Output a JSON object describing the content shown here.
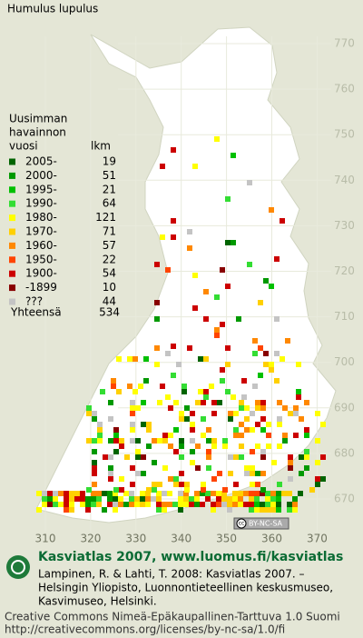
{
  "title": "Humulus lupulus",
  "legend": {
    "heading": [
      "Uusimman",
      "havainnon"
    ],
    "col_headers": [
      "vuosi",
      "lkm"
    ],
    "rows": [
      {
        "label": "2005-",
        "count": 19,
        "color": "#006400"
      },
      {
        "label": "2000-",
        "count": 51,
        "color": "#009900"
      },
      {
        "label": "1995-",
        "count": 21,
        "color": "#00c000"
      },
      {
        "label": "1990-",
        "count": 64,
        "color": "#33dd33"
      },
      {
        "label": "1980-",
        "count": 121,
        "color": "#ffff00"
      },
      {
        "label": "1970-",
        "count": 71,
        "color": "#ffd000"
      },
      {
        "label": "1960-",
        "count": 57,
        "color": "#ff8800"
      },
      {
        "label": "1950-",
        "count": 22,
        "color": "#ff4400"
      },
      {
        "label": "1900-",
        "count": 54,
        "color": "#cc0000"
      },
      {
        "label": "-1899",
        "count": 10,
        "color": "#880000"
      },
      {
        "label": "???",
        "count": 44,
        "color": "#c4c4c4"
      }
    ],
    "total_label": "Yhteensä",
    "total": 534
  },
  "map": {
    "northing_labels": [
      770,
      760,
      750,
      740,
      730,
      720,
      710,
      700,
      690,
      680,
      670
    ],
    "easting_labels": [
      310,
      320,
      330,
      340,
      350,
      360,
      370
    ],
    "license_badge": {
      "cc": "cc",
      "text": "BY-NC-SA"
    }
  },
  "footer": {
    "brand": "Kasviatlas 2007, www.luomus.fi/kasviatlas",
    "citation": [
      "Lampinen, R. & Lahti, T. 2008: Kasviatlas 2007. –",
      "Helsingin Yliopisto, Luonnontieteellinen keskusmuseo,",
      "Kasvimuseo, Helsinki."
    ],
    "license": [
      "Creative Commons Nimeä-Epäkaupallinen-Tarttuva 1.0 Suomi",
      "http://creativecommons.org/licenses/by-nc-sa/1.0/fi"
    ]
  }
}
